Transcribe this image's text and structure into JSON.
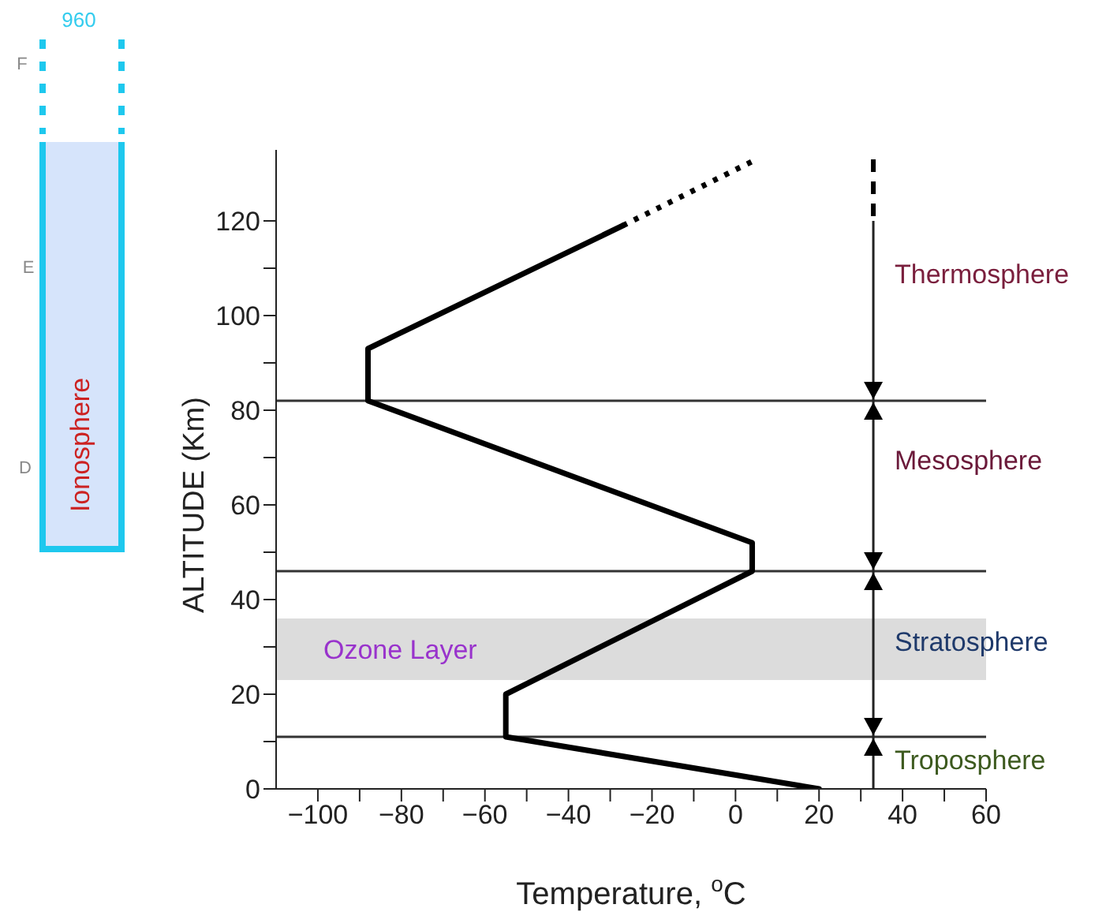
{
  "chart_data": {
    "type": "line",
    "xlabel": "Temperature, $^{o}$C",
    "ylabel": "ALTITUDE (Km)",
    "xlim": [
      -110,
      60
    ],
    "ylim": [
      0,
      135
    ],
    "xticks": [
      {
        "value": -100,
        "label": "−100"
      },
      {
        "value": -90,
        "label": null
      },
      {
        "value": -80,
        "label": "−80"
      },
      {
        "value": -70,
        "label": null
      },
      {
        "value": -60,
        "label": "−60"
      },
      {
        "value": -50,
        "label": null
      },
      {
        "value": -40,
        "label": "−40"
      },
      {
        "value": -30,
        "label": null
      },
      {
        "value": -20,
        "label": "−20"
      },
      {
        "value": -10,
        "label": null
      },
      0,
      {
        "value": 10,
        "label": null
      },
      20,
      {
        "value": 30,
        "label": null
      },
      40,
      {
        "value": 50,
        "label": null
      },
      60
    ],
    "yticks": [
      0,
      {
        "value": 10,
        "label": null
      },
      20,
      {
        "value": 30,
        "label": null
      },
      40,
      {
        "value": 50,
        "label": null
      },
      60,
      {
        "value": 70,
        "label": null
      },
      80,
      {
        "value": 90,
        "label": null
      },
      100,
      {
        "value": 110,
        "label": null
      },
      120
    ],
    "series": [
      {
        "color": "#000000",
        "line_style": "solid",
        "x": [
          20,
          -55,
          -55,
          4,
          4,
          -88,
          -88,
          -27
        ],
        "values": [
          0,
          11,
          20,
          46,
          52,
          82,
          93,
          119
        ]
      },
      {
        "color": "#000000",
        "line_style": "dotted",
        "x": [
          -27,
          5
        ],
        "values": [
          119,
          133
        ]
      }
    ],
    "ref_lines": [
      {
        "axis": "y",
        "value": 82,
        "color": "#333333"
      },
      {
        "axis": "y",
        "value": 46,
        "color": "#333333"
      },
      {
        "axis": "y",
        "value": 11,
        "color": "#333333"
      },
      {
        "axis": "x",
        "value": 33,
        "color": "#222222"
      }
    ],
    "bands": [
      {
        "axis": "y",
        "from": 23,
        "to": 36,
        "label": "Ozone Layer",
        "color": "#dcdcdc"
      }
    ],
    "annotations": [
      "Thermosphere",
      "Mesosphere",
      "Stratosphere",
      "Troposphere",
      "Ionosphere",
      "960",
      "F",
      "E",
      "D"
    ],
    "marker": "none"
  }
}
